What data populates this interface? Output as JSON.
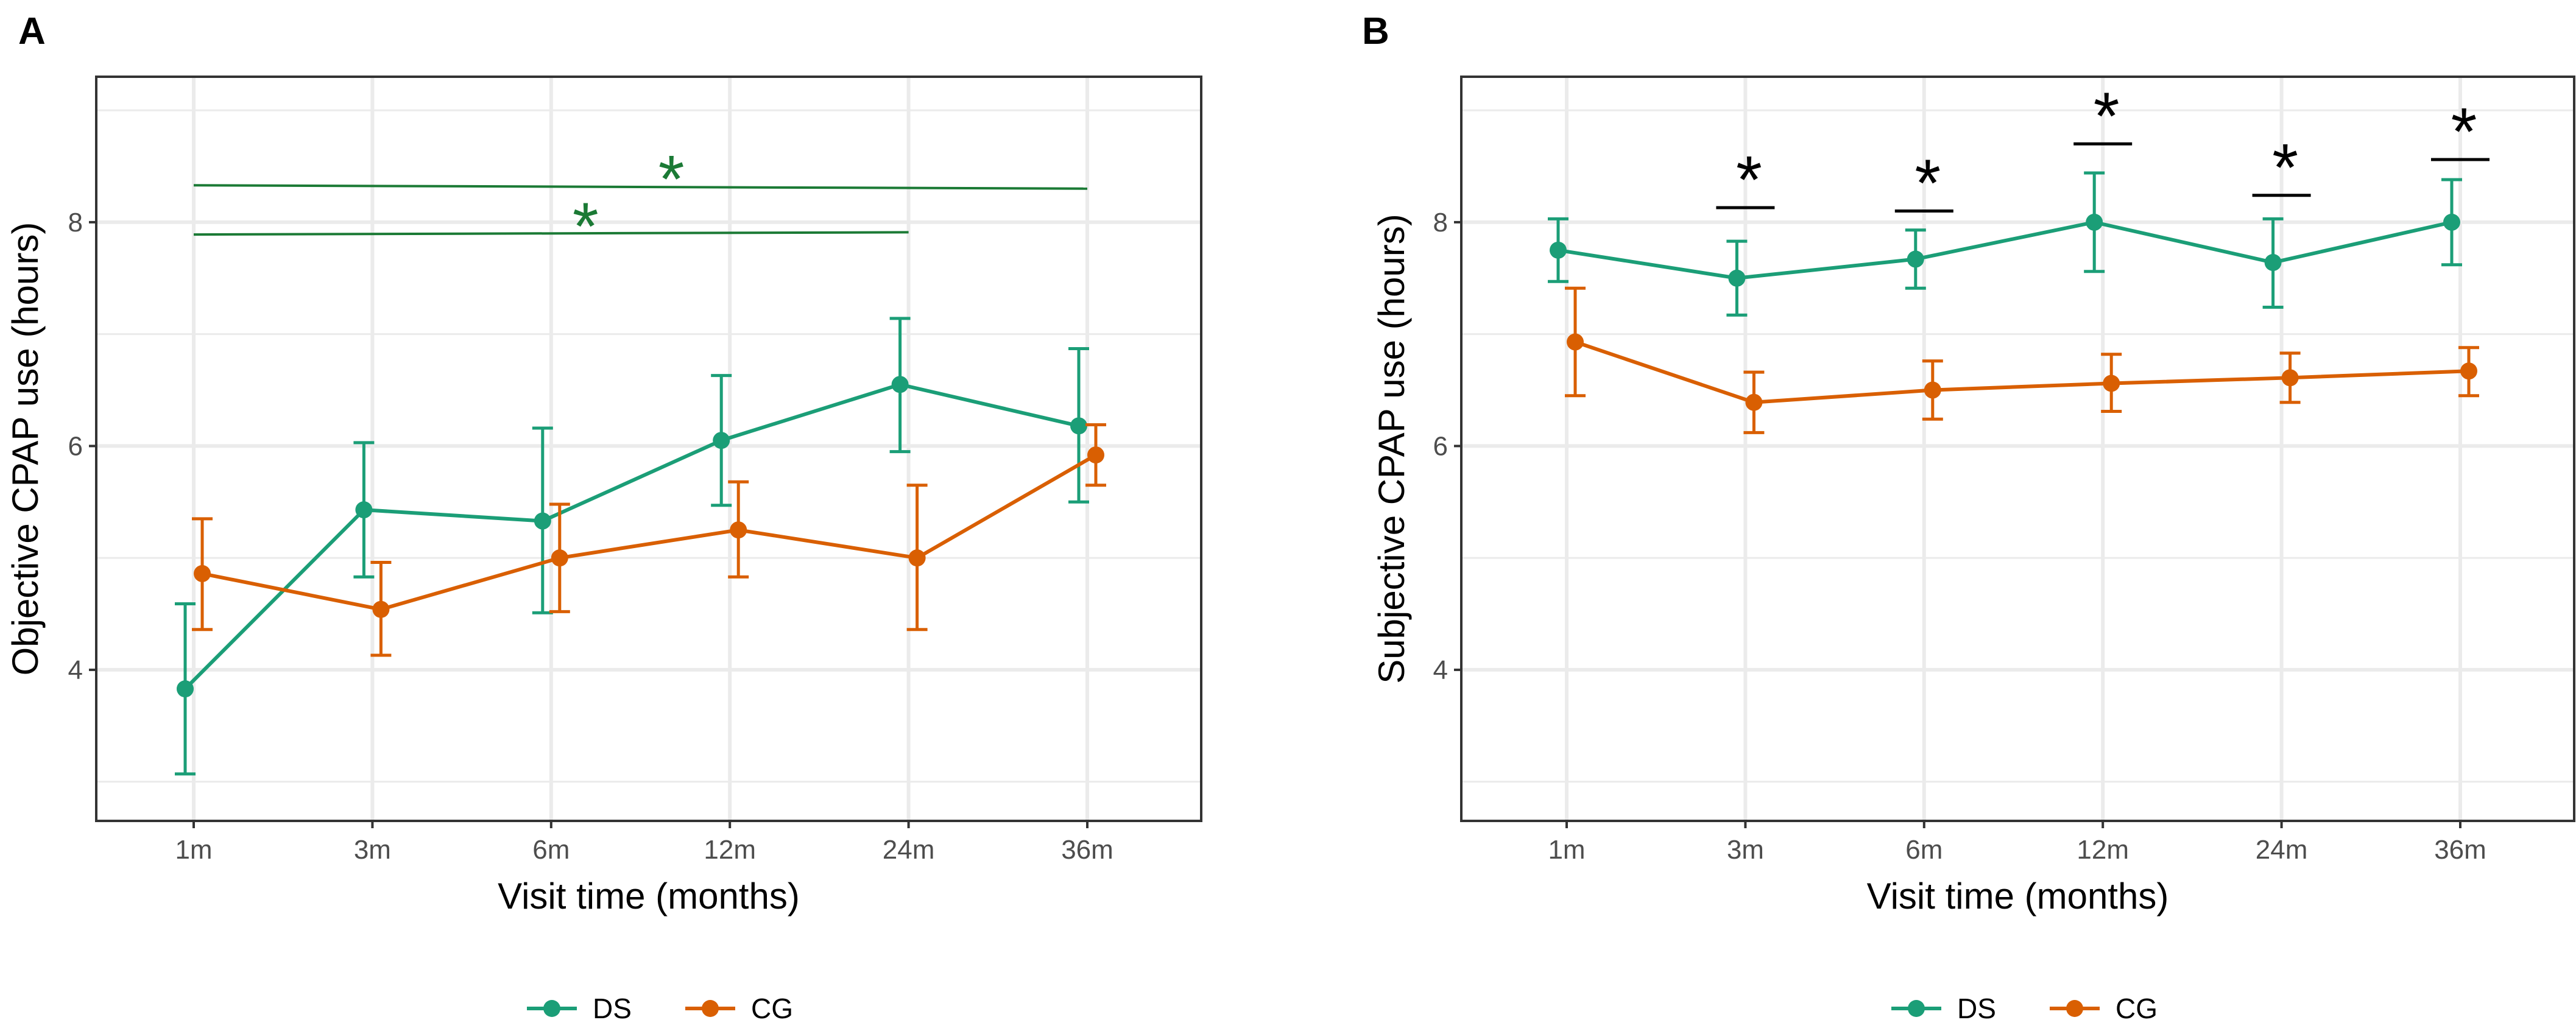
{
  "colors": {
    "DS": "#1b9e77",
    "CG": "#d95f02",
    "grid": "#ebebeb",
    "border": "#333333",
    "annotation_A": "#1b7a35",
    "annotation_B": "#000000"
  },
  "legend": {
    "entries": [
      {
        "name": "DS",
        "icon": "line-point-icon"
      },
      {
        "name": "CG",
        "icon": "line-point-icon"
      }
    ]
  },
  "chart_data": [
    {
      "panel": "A",
      "type": "line",
      "title": "",
      "xlabel": "Visit time (months)",
      "ylabel": "Objective CPAP use  (hours)",
      "categories": [
        "1m",
        "3m",
        "6m",
        "12m",
        "24m",
        "36m"
      ],
      "ylim": [
        2.65,
        9.3
      ],
      "yticks": [
        4,
        6,
        8
      ],
      "grid": true,
      "legend_position": "bottom",
      "series": [
        {
          "name": "DS",
          "values": [
            3.83,
            5.43,
            5.33,
            6.05,
            6.55,
            6.18
          ],
          "lower": [
            3.07,
            4.83,
            4.51,
            5.47,
            5.95,
            5.5
          ],
          "upper": [
            4.59,
            6.03,
            6.16,
            6.63,
            7.14,
            6.87
          ]
        },
        {
          "name": "CG",
          "values": [
            4.86,
            4.54,
            5.0,
            5.25,
            5.0,
            5.92
          ],
          "lower": [
            4.36,
            4.13,
            4.52,
            4.83,
            4.36,
            5.65
          ],
          "upper": [
            5.35,
            4.96,
            5.48,
            5.68,
            5.65,
            6.19
          ]
        }
      ],
      "annotations": [
        {
          "text": "*",
          "from": "1m",
          "to": "36m",
          "y_start": 8.33,
          "y_end": 8.3
        },
        {
          "text": "*",
          "from": "1m",
          "to": "24m",
          "y_start": 7.89,
          "y_end": 7.91
        }
      ]
    },
    {
      "panel": "B",
      "type": "line",
      "title": "",
      "xlabel": "Visit time (months)",
      "ylabel": "Subjective CPAP use (hours)",
      "categories": [
        "1m",
        "3m",
        "6m",
        "12m",
        "24m",
        "36m"
      ],
      "ylim": [
        2.65,
        9.3
      ],
      "yticks": [
        4,
        6,
        8
      ],
      "grid": true,
      "legend_position": "bottom",
      "series": [
        {
          "name": "DS",
          "values": [
            7.75,
            7.5,
            7.67,
            8.0,
            7.64,
            8.0
          ],
          "lower": [
            7.47,
            7.17,
            7.41,
            7.56,
            7.24,
            7.62
          ],
          "upper": [
            8.03,
            7.83,
            7.93,
            8.44,
            8.03,
            8.38
          ]
        },
        {
          "name": "CG",
          "values": [
            6.93,
            6.39,
            6.5,
            6.56,
            6.61,
            6.67
          ],
          "lower": [
            6.45,
            6.12,
            6.24,
            6.31,
            6.39,
            6.45
          ],
          "upper": [
            7.41,
            6.66,
            6.76,
            6.82,
            6.83,
            6.88
          ]
        }
      ],
      "annotations": [
        {
          "text": "*",
          "at": "3m",
          "y": 8.13
        },
        {
          "text": "*",
          "at": "6m",
          "y": 8.1
        },
        {
          "text": "*",
          "at": "12m",
          "y": 8.7
        },
        {
          "text": "*",
          "at": "24m",
          "y": 8.24
        },
        {
          "text": "*",
          "at": "36m",
          "y": 8.56
        }
      ]
    }
  ]
}
